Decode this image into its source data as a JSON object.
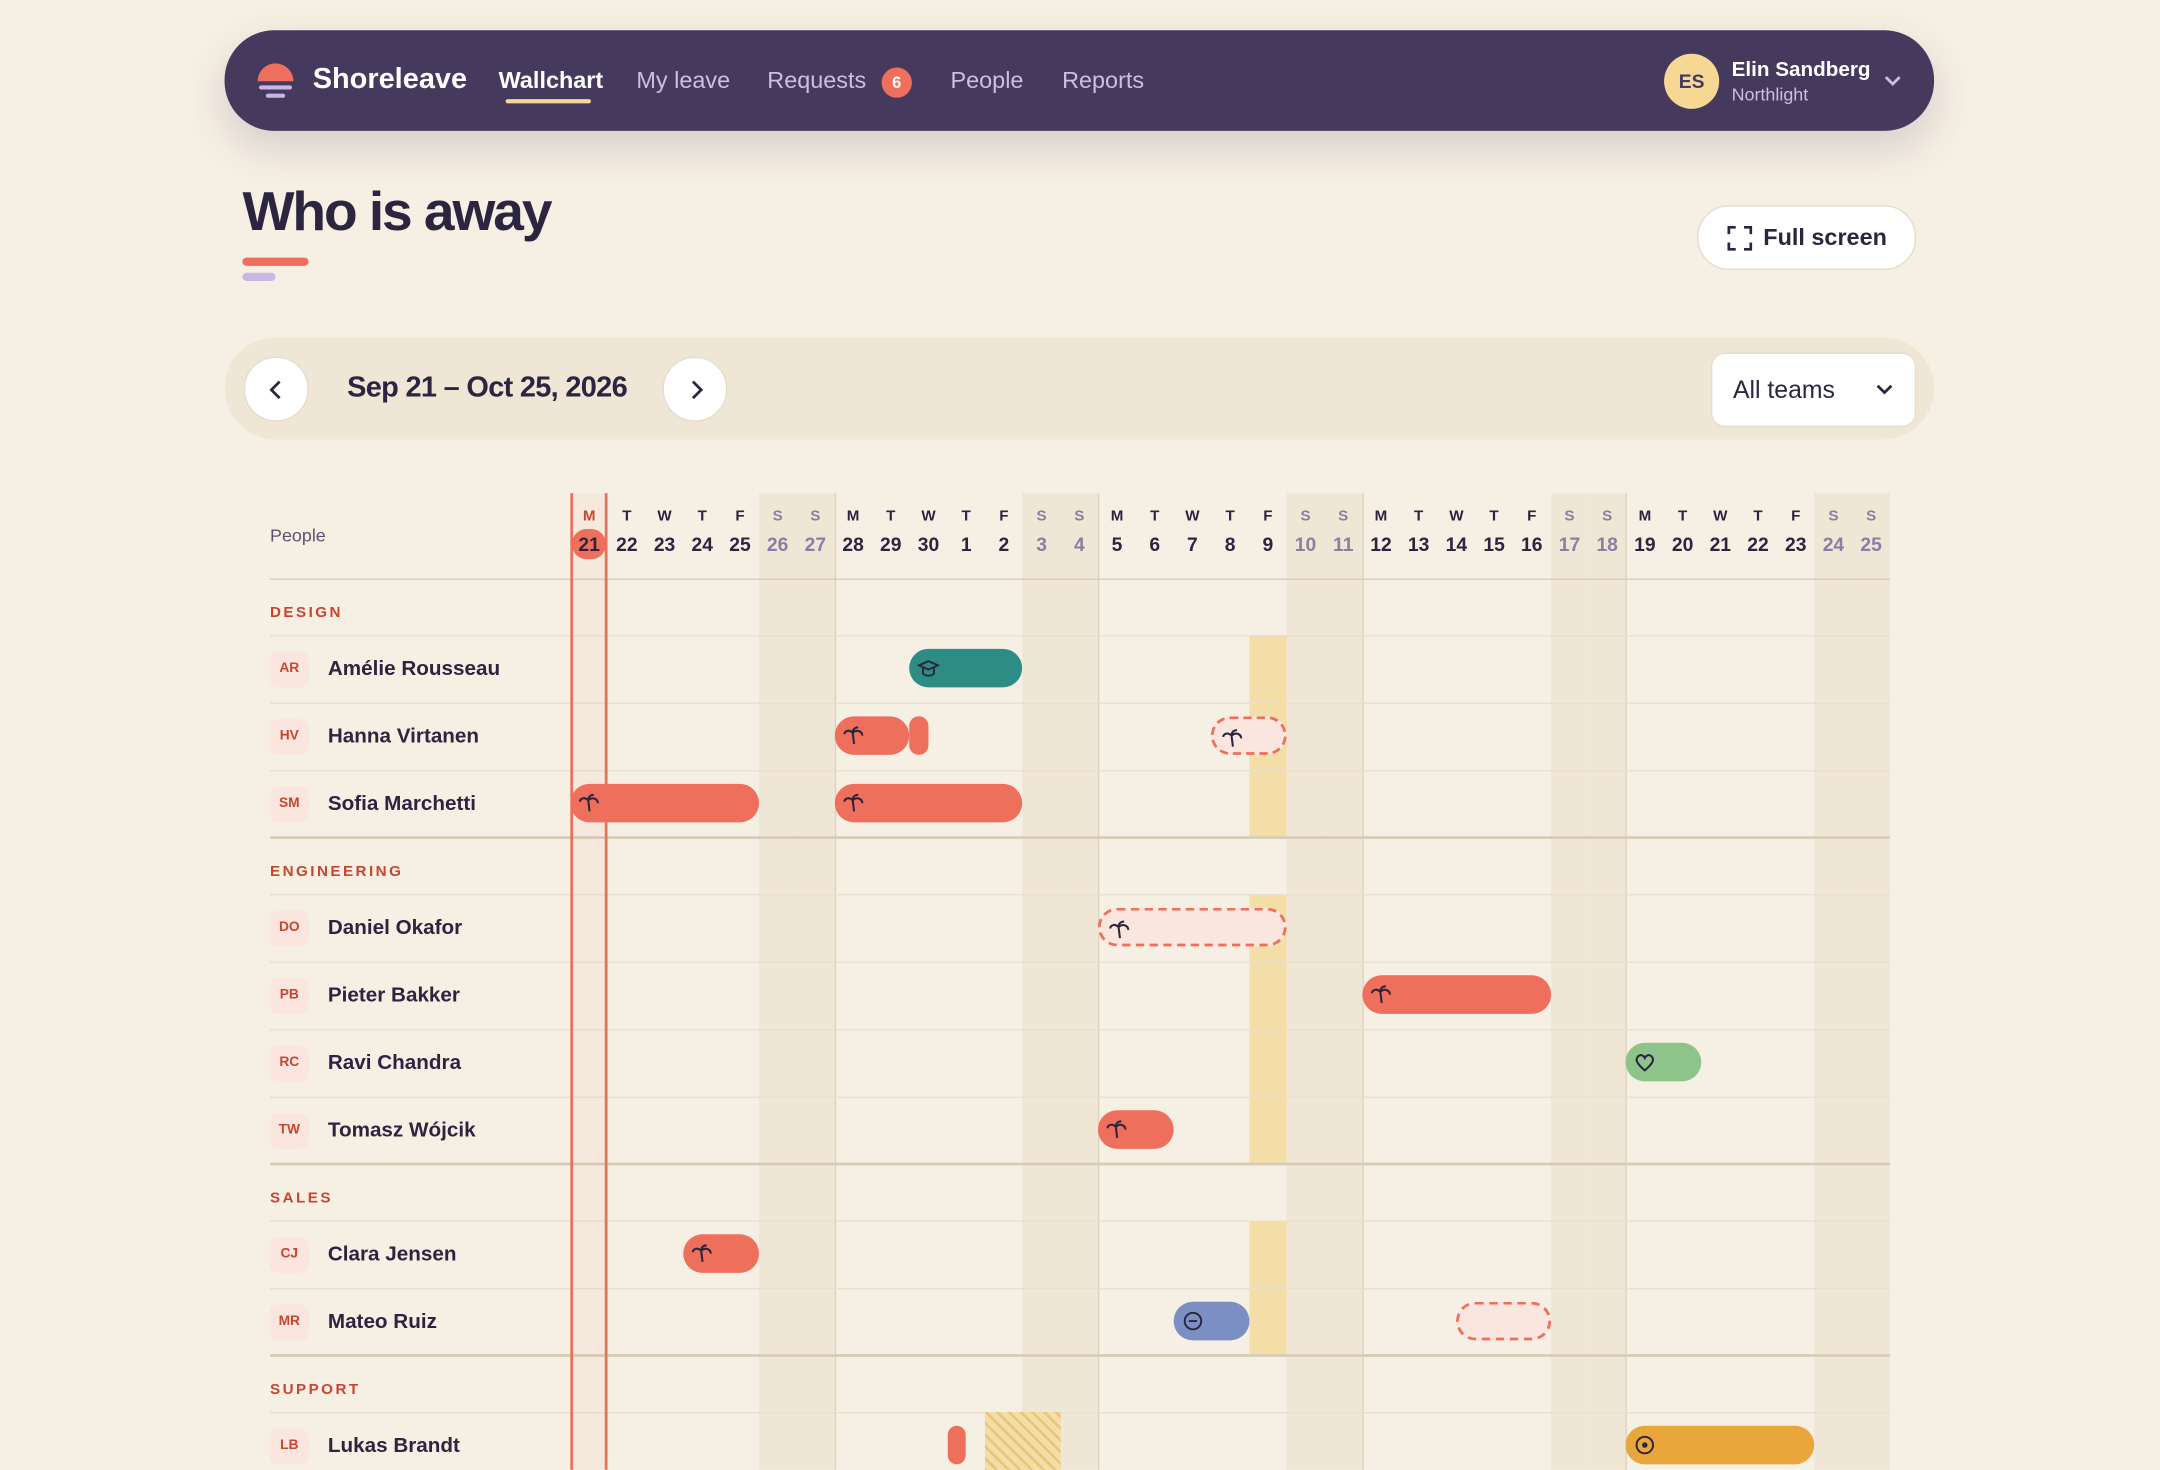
{
  "nav": {
    "brand": "Shoreleave",
    "links": [
      "Wallchart",
      "My leave",
      "Requests",
      "People",
      "Reports"
    ],
    "requests_badge": "6",
    "user": {
      "initials": "ES",
      "name": "Elin Sandberg",
      "team": "Northlight"
    }
  },
  "header": {
    "title": "Who is away",
    "full_screen": "Full screen"
  },
  "toolbar": {
    "range": "Sep 21 – Oct 25, 2026",
    "filter": "All teams"
  },
  "wallchart": {
    "people_label": "People",
    "days": [
      {
        "weekday": "M",
        "date": 21
      },
      {
        "weekday": "T",
        "date": 22
      },
      {
        "weekday": "W",
        "date": 23
      },
      {
        "weekday": "T",
        "date": 24
      },
      {
        "weekday": "F",
        "date": 25
      },
      {
        "weekday": "S",
        "date": 26
      },
      {
        "weekday": "S",
        "date": 27
      },
      {
        "weekday": "M",
        "date": 28
      },
      {
        "weekday": "T",
        "date": 29
      },
      {
        "weekday": "W",
        "date": 30
      },
      {
        "weekday": "T",
        "date": 1
      },
      {
        "weekday": "F",
        "date": 2
      },
      {
        "weekday": "S",
        "date": 3
      },
      {
        "weekday": "S",
        "date": 4
      },
      {
        "weekday": "M",
        "date": 5
      },
      {
        "weekday": "T",
        "date": 6
      },
      {
        "weekday": "W",
        "date": 7
      },
      {
        "weekday": "T",
        "date": 8
      },
      {
        "weekday": "F",
        "date": 9
      },
      {
        "weekday": "S",
        "date": 10
      },
      {
        "weekday": "S",
        "date": 11
      },
      {
        "weekday": "M",
        "date": 12
      },
      {
        "weekday": "T",
        "date": 13
      },
      {
        "weekday": "W",
        "date": 14
      },
      {
        "weekday": "T",
        "date": 15
      },
      {
        "weekday": "F",
        "date": 16
      },
      {
        "weekday": "S",
        "date": 17
      },
      {
        "weekday": "S",
        "date": 18
      },
      {
        "weekday": "M",
        "date": 19
      },
      {
        "weekday": "T",
        "date": 20
      },
      {
        "weekday": "W",
        "date": 21
      },
      {
        "weekday": "T",
        "date": 22
      },
      {
        "weekday": "F",
        "date": 23
      },
      {
        "weekday": "S",
        "date": 24
      },
      {
        "weekday": "S",
        "date": 25
      }
    ],
    "groups": [
      {
        "name": "DESIGN",
        "people": [
          {
            "initials": "AR",
            "name": "Amélie Rousseau"
          },
          {
            "initials": "HV",
            "name": "Hanna Virtanen"
          },
          {
            "initials": "SM",
            "name": "Sofia Marchetti"
          }
        ]
      },
      {
        "name": "ENGINEERING",
        "people": [
          {
            "initials": "DO",
            "name": "Daniel Okafor"
          },
          {
            "initials": "PB",
            "name": "Pieter Bakker"
          },
          {
            "initials": "RC",
            "name": "Ravi Chandra"
          },
          {
            "initials": "TW",
            "name": "Tomasz Wójcik"
          }
        ]
      },
      {
        "name": "SALES",
        "people": [
          {
            "initials": "CJ",
            "name": "Clara Jensen"
          },
          {
            "initials": "MR",
            "name": "Mateo Ruiz"
          }
        ]
      },
      {
        "name": "SUPPORT",
        "people": [
          {
            "initials": "LB",
            "name": "Lukas Brandt"
          }
        ]
      }
    ]
  }
}
